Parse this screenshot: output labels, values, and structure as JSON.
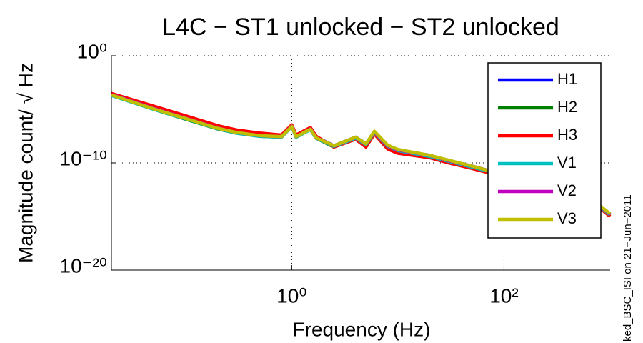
{
  "chart_data": {
    "type": "line",
    "title": "L4C − ST1 unlocked − ST2 unlocked",
    "xlabel": "Frequency (Hz)",
    "ylabel": "Magnitude count/ √ Hz",
    "side_note": "ked_BSC_ISI on 21−Jun−2011",
    "xscale": "log",
    "yscale": "log",
    "grid": true,
    "legend": "upper right",
    "xlim": [
      0.02,
      1000
    ],
    "ylim": [
      1e-20,
      1
    ],
    "xticks": [
      {
        "value": 1,
        "label": "10⁰"
      },
      {
        "value": 100,
        "label": "10²"
      }
    ],
    "yticks": [
      {
        "value": 1e-20,
        "label": "10⁻²⁰"
      },
      {
        "value": 1e-10,
        "label": "10⁻¹⁰"
      },
      {
        "value": 1,
        "label": "10⁰"
      }
    ],
    "x": [
      0.02,
      0.05,
      0.1,
      0.2,
      0.3,
      0.5,
      0.8,
      1,
      1.1,
      1.5,
      1.7,
      2.5,
      4,
      5,
      6,
      8,
      10,
      20,
      30,
      50,
      100,
      200,
      300,
      500,
      1000
    ],
    "series": [
      {
        "name": "H1",
        "color": "#0000ff",
        "values": [
          0.00025,
          1.3e-05,
          1.6e-06,
          2e-07,
          8e-08,
          4e-08,
          3e-08,
          3e-07,
          3e-08,
          1.6e-07,
          2.5e-08,
          4e-09,
          2.5e-08,
          6e-09,
          8e-08,
          4e-09,
          1.6e-09,
          5e-10,
          1.6e-10,
          5e-11,
          8e-12,
          3e-12,
          1.6e-12,
          4e-13,
          1.6e-15
        ]
      },
      {
        "name": "H2",
        "color": "#008000",
        "values": [
          0.0002,
          1e-05,
          1.2e-06,
          1.5e-07,
          6e-08,
          3e-08,
          2.5e-08,
          2.5e-07,
          2.5e-08,
          1.3e-07,
          2e-08,
          3e-09,
          2e-08,
          5e-09,
          6e-08,
          3e-09,
          1.3e-09,
          4e-10,
          1.3e-10,
          4e-11,
          6e-12,
          2.5e-12,
          1.3e-12,
          3e-13,
          1.3e-15
        ]
      },
      {
        "name": "H3",
        "color": "#ff0000",
        "values": [
          0.0003,
          2e-05,
          2.5e-06,
          3e-07,
          1.2e-07,
          6e-08,
          4e-08,
          3.5e-07,
          4e-08,
          2e-07,
          3e-08,
          3e-09,
          1.6e-08,
          3e-09,
          5e-08,
          2e-09,
          8e-10,
          3e-10,
          1e-10,
          3e-11,
          5e-12,
          2e-12,
          1e-12,
          3e-13,
          1e-15
        ]
      },
      {
        "name": "V1",
        "color": "#00bfbf",
        "values": [
          0.0002,
          1e-05,
          1.3e-06,
          1.6e-07,
          6e-08,
          3e-08,
          2.5e-08,
          2.5e-07,
          2.5e-08,
          1.3e-07,
          2e-08,
          3.5e-09,
          2e-08,
          5e-09,
          7e-08,
          3.5e-09,
          1.4e-09,
          4e-10,
          1.4e-10,
          4e-11,
          7e-12,
          2.5e-12,
          1.4e-12,
          3.5e-13,
          1.4e-15
        ]
      },
      {
        "name": "V2",
        "color": "#bf00bf",
        "values": [
          0.00024,
          1.2e-05,
          1.5e-06,
          1.8e-07,
          7e-08,
          3.5e-08,
          2.8e-08,
          2.8e-07,
          2.8e-08,
          1.5e-07,
          2.2e-08,
          4e-09,
          2.4e-08,
          6e-09,
          8e-08,
          4e-09,
          1.6e-09,
          5e-10,
          1.6e-10,
          5e-11,
          8e-12,
          3e-12,
          1.6e-12,
          4e-13,
          1.6e-15
        ]
      },
      {
        "name": "V3",
        "color": "#bfbf00",
        "values": [
          0.00022,
          1.1e-05,
          1.4e-06,
          1.7e-07,
          7e-08,
          3.5e-08,
          2.8e-08,
          2.6e-07,
          2.8e-08,
          1.4e-07,
          2.2e-08,
          4e-09,
          2.5e-08,
          6e-09,
          9e-08,
          4.5e-09,
          1.8e-09,
          5e-10,
          1.8e-10,
          5e-11,
          8e-12,
          3e-12,
          1.8e-12,
          4e-13,
          1.8e-15
        ]
      }
    ]
  }
}
